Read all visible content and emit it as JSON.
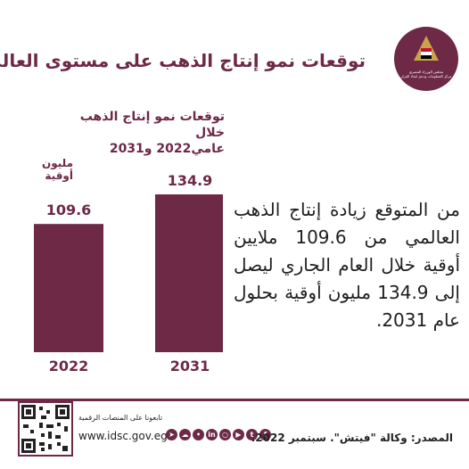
{
  "header": {
    "title": "توقعات نمو إنتاج الذهب على مستوى العالم",
    "logo_line1": "مجلس الوزراء المصري",
    "logo_line2": "مركز المعلومات ودعم اتخاذ القرار"
  },
  "chart_data": {
    "type": "bar",
    "title_line1": "توقعات نمو إنتاج الذهب خلال",
    "title_line2": "عامي2022 و2031",
    "ylabel": "مليون أوقية",
    "categories": [
      "2022",
      "2031"
    ],
    "values": [
      109.6,
      134.9
    ],
    "value_labels": [
      "109.6",
      "134.9"
    ],
    "bar_color": "#6d2946",
    "legend": "none",
    "grid": false
  },
  "description": "من المتوقع زيادة إنتاج الذهب العالمي من 109.6 ملايين أوقية خلال العام الجاري ليصل إلى 134.9 مليون أوقية بحلول عام 2031.",
  "footer": {
    "follow_text": "تابعونا على المنصات الرقمية",
    "website": "www.idsc.gov.eg",
    "source": "المصدر: وكالة \"فيتش\". سبتمبر 2022.",
    "social_icons": [
      "facebook-icon",
      "twitter-icon",
      "youtube-icon",
      "instagram-icon",
      "linkedin-icon",
      "flickr-icon",
      "soundcloud-icon",
      "telegram-icon"
    ],
    "accent_color": "#6d2946"
  }
}
